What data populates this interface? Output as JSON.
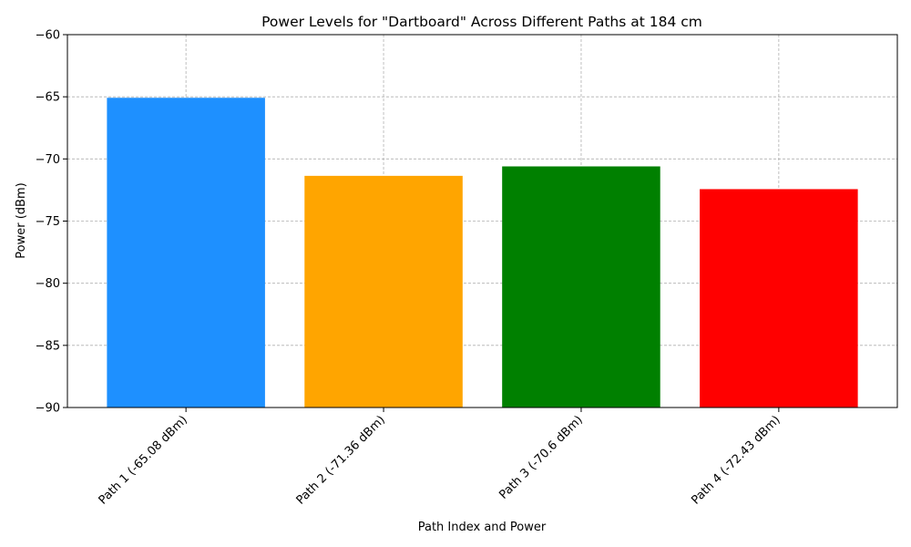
{
  "chart_data": {
    "type": "bar",
    "title": "Power Levels for \"Dartboard\" Across Different Paths at 184 cm",
    "xlabel": "Path Index and Power",
    "ylabel": "Power (dBm)",
    "ylim": [
      -90,
      -60
    ],
    "yticks": [
      -90,
      -85,
      -80,
      -75,
      -70,
      -65,
      -60
    ],
    "ytick_labels": [
      "−90",
      "−85",
      "−80",
      "−75",
      "−70",
      "−65",
      "−60"
    ],
    "categories": [
      "Path 1 (-65.08 dBm)",
      "Path 2 (-71.36 dBm)",
      "Path 3 (-70.6 dBm)",
      "Path 4 (-72.43 dBm)"
    ],
    "values": [
      -65.08,
      -71.36,
      -70.6,
      -72.43
    ],
    "colors": [
      "#1e90ff",
      "#ffa500",
      "#008000",
      "#ff0000"
    ],
    "grid": true,
    "legend": false
  }
}
